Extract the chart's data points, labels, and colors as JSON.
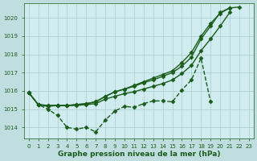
{
  "background_color": "#c0dde0",
  "plot_bg_color": "#d0ecee",
  "grid_color": "#a8ccd0",
  "line_color": "#1a5c1a",
  "marker_color": "#1a5c1a",
  "xlabel": "Graphe pression niveau de la mer (hPa)",
  "xlabel_fontsize": 6.5,
  "xlabel_color": "#1a5c1a",
  "tick_color": "#1a5c1a",
  "tick_fontsize": 5,
  "ylim": [
    1013.4,
    1020.8
  ],
  "yticks": [
    1014,
    1015,
    1016,
    1017,
    1018,
    1019,
    1020
  ],
  "xlim": [
    -0.5,
    23.5
  ],
  "xticks": [
    0,
    1,
    2,
    3,
    4,
    5,
    6,
    7,
    8,
    9,
    10,
    11,
    12,
    13,
    14,
    15,
    16,
    17,
    18,
    19,
    20,
    21,
    22,
    23
  ],
  "series": [
    {
      "x": [
        0,
        1,
        2,
        3,
        4,
        5,
        6,
        7,
        8,
        9,
        10,
        11,
        12,
        13,
        14,
        15,
        16,
        17,
        18,
        19,
        20,
        21,
        22,
        23
      ],
      "y": [
        1015.9,
        1015.25,
        1015.0,
        1014.65,
        1014.0,
        1013.9,
        1014.0,
        1013.75,
        1014.4,
        1014.9,
        1015.15,
        1015.1,
        1015.3,
        1015.45,
        1015.45,
        1015.4,
        1016.05,
        1016.6,
        1017.8,
        1015.4,
        null,
        null,
        null,
        null
      ],
      "linestyle": "--",
      "linewidth": 1.0,
      "marker": "D",
      "markersize": 2.5
    },
    {
      "x": [
        0,
        1,
        2,
        3,
        4,
        5,
        6,
        7,
        8,
        9,
        10,
        11,
        12,
        13,
        14,
        15,
        16,
        17,
        18,
        19,
        20,
        21,
        22,
        23
      ],
      "y": [
        1015.9,
        1015.25,
        1015.15,
        1015.2,
        1015.2,
        1015.2,
        1015.25,
        1015.3,
        1015.55,
        1015.7,
        1015.85,
        1015.95,
        1016.1,
        1016.25,
        1016.4,
        1016.6,
        1016.95,
        1017.4,
        1018.2,
        1018.85,
        1019.55,
        1020.3,
        null,
        null
      ],
      "linestyle": "-",
      "linewidth": 1.0,
      "marker": "D",
      "markersize": 2.5
    },
    {
      "x": [
        0,
        1,
        2,
        3,
        4,
        5,
        6,
        7,
        8,
        9,
        10,
        11,
        12,
        13,
        14,
        15,
        16,
        17,
        18,
        19,
        20,
        21,
        22,
        23
      ],
      "y": [
        1015.9,
        1015.25,
        1015.2,
        1015.2,
        1015.2,
        1015.25,
        1015.3,
        1015.4,
        1015.7,
        1015.95,
        1016.1,
        1016.25,
        1016.45,
        1016.6,
        1016.8,
        1017.0,
        1017.35,
        1017.85,
        1018.85,
        1019.55,
        1020.3,
        1020.55,
        null,
        null
      ],
      "linestyle": "-",
      "linewidth": 1.0,
      "marker": "D",
      "markersize": 2.5
    },
    {
      "x": [
        0,
        1,
        2,
        3,
        4,
        5,
        6,
        7,
        8,
        9,
        10,
        11,
        12,
        13,
        14,
        15,
        16,
        17,
        18,
        19,
        20,
        21,
        22,
        23
      ],
      "y": [
        1015.9,
        1015.25,
        1015.2,
        1015.2,
        1015.2,
        1015.25,
        1015.3,
        1015.4,
        1015.7,
        1015.95,
        1016.1,
        1016.3,
        1016.5,
        1016.7,
        1016.9,
        1017.1,
        1017.55,
        1018.1,
        1019.0,
        1019.7,
        1020.25,
        1020.55,
        1020.6,
        null
      ],
      "linestyle": "-",
      "linewidth": 1.0,
      "marker": "D",
      "markersize": 2.5
    }
  ]
}
